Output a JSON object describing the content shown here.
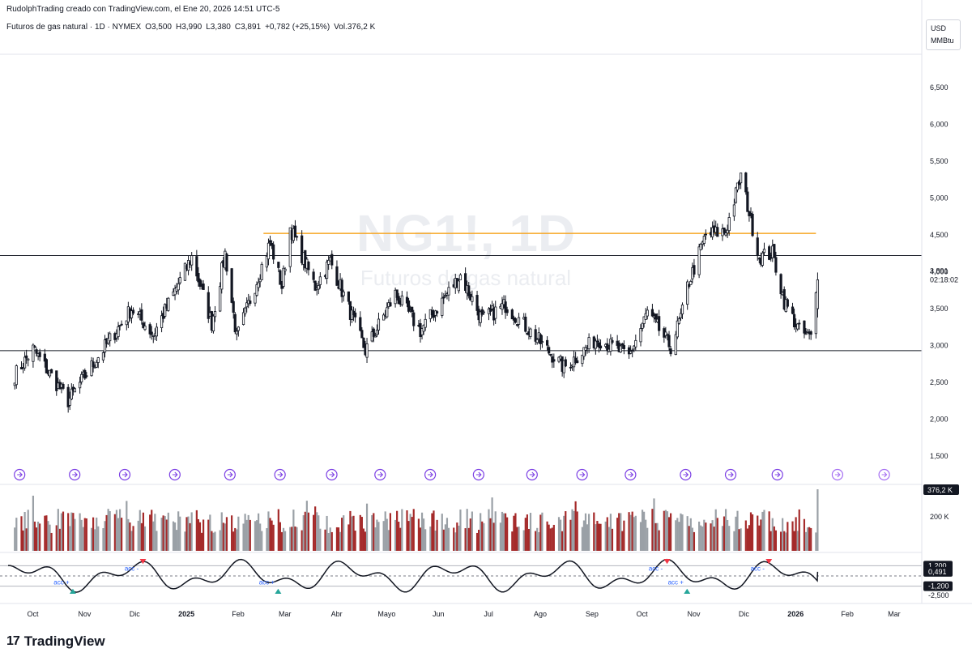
{
  "header": {
    "attribution": "RudolphTrading creado con TradingView.com, el Ene 20, 2026 14:51 UTC-5",
    "symbol_desc": "Futuros de gas natural · 1D · NYMEX",
    "open": "O3,500",
    "high": "H3,990",
    "low": "L3,380",
    "close": "C3,891",
    "change": "+0,782 (+25,15%)",
    "volume": "Vol.376,2 K"
  },
  "watermark": {
    "symbol": "NG1!, 1D",
    "name": "Futuros de gas natural"
  },
  "unit": {
    "currency": "USD",
    "measure": "MMBtu"
  },
  "colors": {
    "up": "#131722",
    "down": "#131722",
    "hline": "#131722",
    "resistance": "#f6a623",
    "vol_up": "#9aa0a6",
    "vol_down": "#a52a2a",
    "osc_line": "#131722",
    "marker_up": "#26a69a",
    "marker_down": "#f23645",
    "acc_text": "#2962ff",
    "event_icon": "#7b3fe4"
  },
  "footer": {
    "brand": "TradingView"
  },
  "chart_data": {
    "type": "candlestick",
    "price_axis": {
      "ticks": [
        "6,500",
        "6,000",
        "5,500",
        "5,000",
        "4,500",
        "4,000",
        "3,500",
        "3,000",
        "2,500",
        "2,000",
        "1,500"
      ],
      "tick_values": [
        6.5,
        6.0,
        5.5,
        5.0,
        4.5,
        4.0,
        3.5,
        3.0,
        2.5,
        2.0,
        1.5
      ],
      "ylim": [
        1.4,
        6.9
      ],
      "last_price": "3,891",
      "countdown": "02:18:02"
    },
    "time_axis": {
      "labels": [
        "Oct",
        "Nov",
        "Dic",
        "2025",
        "Feb",
        "Mar",
        "Abr",
        "Mayo",
        "Jun",
        "Jul",
        "Ago",
        "Sep",
        "Oct",
        "Nov",
        "Dic",
        "2026",
        "Feb",
        "Mar"
      ],
      "bold_labels": [
        "2025",
        "2026"
      ]
    },
    "horizontal_lines": [
      {
        "value": 4.22,
        "style": "solid"
      },
      {
        "value": 2.93,
        "style": "solid"
      }
    ],
    "resistance_segment": {
      "value": 4.52,
      "from": "Mar 2025",
      "to": "Ene 2026"
    },
    "key_points": [
      {
        "date": "2024-09-26",
        "price": 2.6
      },
      {
        "date": "2024-10-07",
        "price": 2.95
      },
      {
        "date": "2024-10-28",
        "price": 2.25
      },
      {
        "date": "2024-11-15",
        "price": 2.85
      },
      {
        "date": "2024-12-05",
        "price": 3.5
      },
      {
        "date": "2024-12-18",
        "price": 3.15
      },
      {
        "date": "2025-01-10",
        "price": 4.2
      },
      {
        "date": "2025-01-22",
        "price": 3.3
      },
      {
        "date": "2025-01-30",
        "price": 4.25
      },
      {
        "date": "2025-02-06",
        "price": 3.1
      },
      {
        "date": "2025-02-26",
        "price": 4.4
      },
      {
        "date": "2025-03-05",
        "price": 3.8
      },
      {
        "date": "2025-03-10",
        "price": 4.6
      },
      {
        "date": "2025-03-25",
        "price": 3.8
      },
      {
        "date": "2025-04-03",
        "price": 4.15
      },
      {
        "date": "2025-04-24",
        "price": 2.93
      },
      {
        "date": "2025-05-12",
        "price": 3.7
      },
      {
        "date": "2025-05-27",
        "price": 3.2
      },
      {
        "date": "2025-06-20",
        "price": 3.95
      },
      {
        "date": "2025-07-03",
        "price": 3.35
      },
      {
        "date": "2025-07-17",
        "price": 3.55
      },
      {
        "date": "2025-08-21",
        "price": 2.7
      },
      {
        "date": "2025-09-10",
        "price": 3.1
      },
      {
        "date": "2025-09-29",
        "price": 2.85
      },
      {
        "date": "2025-10-10",
        "price": 3.45
      },
      {
        "date": "2025-10-24",
        "price": 2.98
      },
      {
        "date": "2025-10-31",
        "price": 3.45
      },
      {
        "date": "2025-11-03",
        "price": 3.8
      },
      {
        "date": "2025-11-14",
        "price": 4.5
      },
      {
        "date": "2025-11-26",
        "price": 4.55
      },
      {
        "date": "2025-12-05",
        "price": 5.3
      },
      {
        "date": "2025-12-16",
        "price": 4.2
      },
      {
        "date": "2025-12-24",
        "price": 4.25
      },
      {
        "date": "2025-12-31",
        "price": 3.6
      },
      {
        "date": "2026-01-09",
        "price": 3.2
      },
      {
        "date": "2026-01-16",
        "price": 3.1
      },
      {
        "date": "2026-01-20",
        "price": 3.891
      }
    ],
    "volume_panel": {
      "ticks": [
        "200 K"
      ],
      "last_volume": "376,2 K"
    },
    "oscillator_panel": {
      "ticks": [
        "1,200",
        "-1,200",
        "-2,500"
      ],
      "current": "0,491",
      "annotations": [
        {
          "label": "acc +",
          "date": "2024-10-24",
          "position": "below"
        },
        {
          "label": "acc -",
          "date": "2024-12-05",
          "position": "above"
        },
        {
          "label": "acc +",
          "date": "2025-02-24",
          "position": "below"
        },
        {
          "label": "acc -",
          "date": "2025-10-15",
          "position": "above"
        },
        {
          "label": "acc +",
          "date": "2025-10-27",
          "position": "below"
        },
        {
          "label": "acc -",
          "date": "2025-12-15",
          "position": "above"
        }
      ]
    }
  }
}
